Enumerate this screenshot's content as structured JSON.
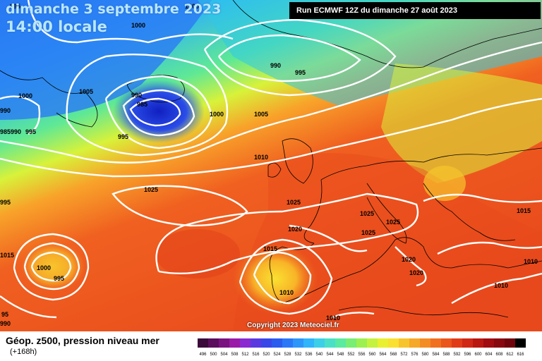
{
  "header": {
    "date_title": "dimanche 3 septembre 2023",
    "time_title": "14:00 locale",
    "run_info": "Run ECMWF 12Z du dimanche 27 août 2023"
  },
  "copyright": "Copyright 2023 Meteociel.fr",
  "legend": {
    "title": "Géop. z500, pression niveau mer",
    "subtitle": "(+168h)",
    "scale_values": [
      "496",
      "500",
      "504",
      "508",
      "512",
      "516",
      "520",
      "524",
      "528",
      "532",
      "536",
      "540",
      "544",
      "548",
      "552",
      "556",
      "560",
      "564",
      "568",
      "572",
      "576",
      "580",
      "584",
      "588",
      "592",
      "596",
      "600",
      "604",
      "608",
      "612",
      "616"
    ],
    "scale_colors": [
      "#3a0a3a",
      "#5a0e5c",
      "#7a1380",
      "#9a1aa8",
      "#8a2ad0",
      "#5a3ae0",
      "#3848e8",
      "#2a5cf0",
      "#2a78f8",
      "#2c96fa",
      "#30b4fa",
      "#3ccfe8",
      "#4ae0c8",
      "#5aeaa0",
      "#78ee72",
      "#9cf050",
      "#c4f23e",
      "#e8f030",
      "#fae030",
      "#f8c42c",
      "#f6a828",
      "#f48c24",
      "#f07020",
      "#ea561c",
      "#e03c18",
      "#d02814",
      "#b81810",
      "#a00c10",
      "#880810",
      "#70040c",
      "#000000"
    ]
  },
  "isobars": [
    {
      "value": "995",
      "color": "#000"
    },
    {
      "value": "1000",
      "color": "#000"
    },
    {
      "value": "1000",
      "color": "#000"
    },
    {
      "value": "990",
      "color": "#000"
    },
    {
      "value": "995",
      "color": "#000"
    },
    {
      "value": "1005",
      "color": "#000"
    },
    {
      "value": "990",
      "color": "#000"
    },
    {
      "value": "985",
      "color": "#000"
    },
    {
      "value": "1000",
      "color": "#000"
    },
    {
      "value": "1005",
      "color": "#000"
    },
    {
      "value": "1000",
      "color": "#000"
    },
    {
      "value": "990",
      "color": "#000"
    },
    {
      "value": "995",
      "color": "#000"
    },
    {
      "value": "985",
      "color": "#000"
    },
    {
      "value": "990",
      "color": "#000"
    },
    {
      "value": "995",
      "color": "#000"
    },
    {
      "value": "995",
      "color": "#000"
    },
    {
      "value": "1010",
      "color": "#000"
    },
    {
      "value": "1025",
      "color": "#000"
    },
    {
      "value": "1025",
      "color": "#000"
    },
    {
      "value": "1025",
      "color": "#000"
    },
    {
      "value": "1025",
      "color": "#000"
    },
    {
      "value": "1025",
      "color": "#000"
    },
    {
      "value": "1020",
      "color": "#000"
    },
    {
      "value": "1015",
      "color": "#000"
    },
    {
      "value": "1015",
      "color": "#000"
    },
    {
      "value": "1000",
      "color": "#000"
    },
    {
      "value": "995",
      "color": "#000"
    },
    {
      "value": "1020",
      "color": "#000"
    },
    {
      "value": "1020",
      "color": "#000"
    },
    {
      "value": "1010",
      "color": "#000"
    },
    {
      "value": "1010",
      "color": "#000"
    },
    {
      "value": "1010",
      "color": "#000"
    },
    {
      "value": "1010",
      "color": "#000"
    },
    {
      "value": "1015",
      "color": "#000"
    },
    {
      "value": "95",
      "color": "#000"
    },
    {
      "value": "990",
      "color": "#000"
    }
  ]
}
